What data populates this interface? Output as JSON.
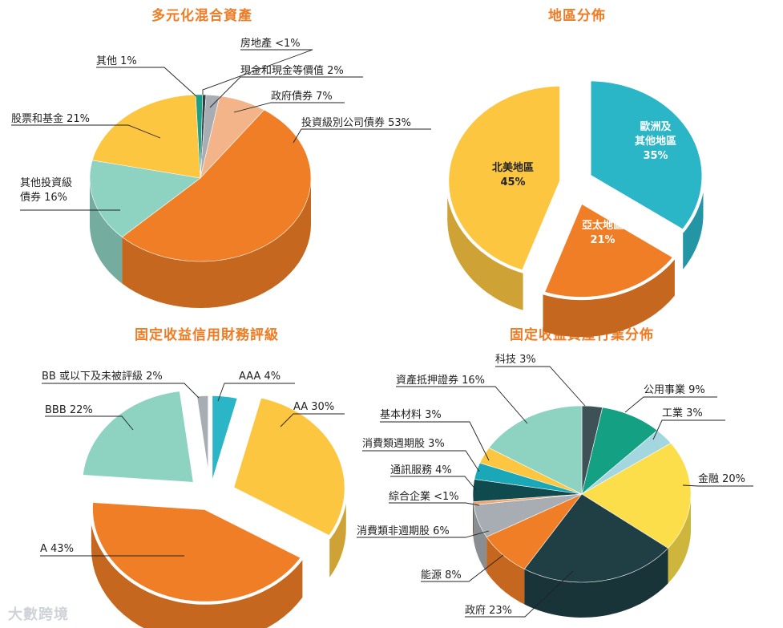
{
  "chart_data": [
    {
      "type": "pie",
      "title": "多元化混合資產",
      "slices": [
        {
          "label": "房地產 <1%",
          "value": 0.5,
          "color": "#2f3f44"
        },
        {
          "label": "現金和現金等價值 2%",
          "value": 2,
          "color": "#a7adb2"
        },
        {
          "label": "政府債券 7%",
          "value": 7,
          "color": "#f4b48a"
        },
        {
          "label": "投資級別公司債券 53%",
          "value": 53,
          "color": "#f07e26"
        },
        {
          "label": "其他投資級\n債券 16%",
          "value": 16,
          "color": "#8ed3c2"
        },
        {
          "label": "股票和基金 21%",
          "value": 21,
          "color": "#fcc641"
        },
        {
          "label": "其他 1%",
          "value": 1,
          "color": "#1f9e86"
        }
      ]
    },
    {
      "type": "pie",
      "title": "地區分佈",
      "slices": [
        {
          "label": "歐洲及\n其他地區\n35%",
          "value": 35,
          "color": "#2bb6c8"
        },
        {
          "label": "亞太地區\n21%",
          "value": 21,
          "color": "#f07e26"
        },
        {
          "label": "北美地區\n45%",
          "value": 45,
          "color": "#fcc641"
        }
      ]
    },
    {
      "type": "pie",
      "title": "固定收益信用財務評級",
      "slices": [
        {
          "label": "AAA 4%",
          "value": 4,
          "color": "#2bb6c8"
        },
        {
          "label": "AA 30%",
          "value": 30,
          "color": "#fcc641"
        },
        {
          "label": "A 43%",
          "value": 43,
          "color": "#f07e26"
        },
        {
          "label": "BBB 22%",
          "value": 22,
          "color": "#8ed3c2"
        },
        {
          "label": "BB 或以下及未被評級 2%",
          "value": 2,
          "color": "#a7adb2"
        }
      ]
    },
    {
      "type": "pie",
      "title": "固定收益資產行業分佈",
      "slices": [
        {
          "label": "科技 3%",
          "value": 3,
          "color": "#3d5157"
        },
        {
          "label": "公用事業 9%",
          "value": 9,
          "color": "#14a183"
        },
        {
          "label": "工業 3%",
          "value": 3,
          "color": "#a4d6e0"
        },
        {
          "label": "金融 20%",
          "value": 20,
          "color": "#fbde4a"
        },
        {
          "label": "政府 23%",
          "value": 23,
          "color": "#1f3f45"
        },
        {
          "label": "能源 8%",
          "value": 8,
          "color": "#f07e26"
        },
        {
          "label": "消費類非週期股 6%",
          "value": 6,
          "color": "#a7adb2"
        },
        {
          "label": "綜合企業 <1%",
          "value": 0.6,
          "color": "#f4a36a"
        },
        {
          "label": "通訊服務 4%",
          "value": 4,
          "color": "#0f4a4f"
        },
        {
          "label": "消費類週期股 3%",
          "value": 3,
          "color": "#1aa8b8"
        },
        {
          "label": "基本材料 3%",
          "value": 3,
          "color": "#fcc641"
        },
        {
          "label": "資產抵押證券 16%",
          "value": 16,
          "color": "#8ed3c2"
        }
      ]
    }
  ],
  "watermark": "大數跨境"
}
